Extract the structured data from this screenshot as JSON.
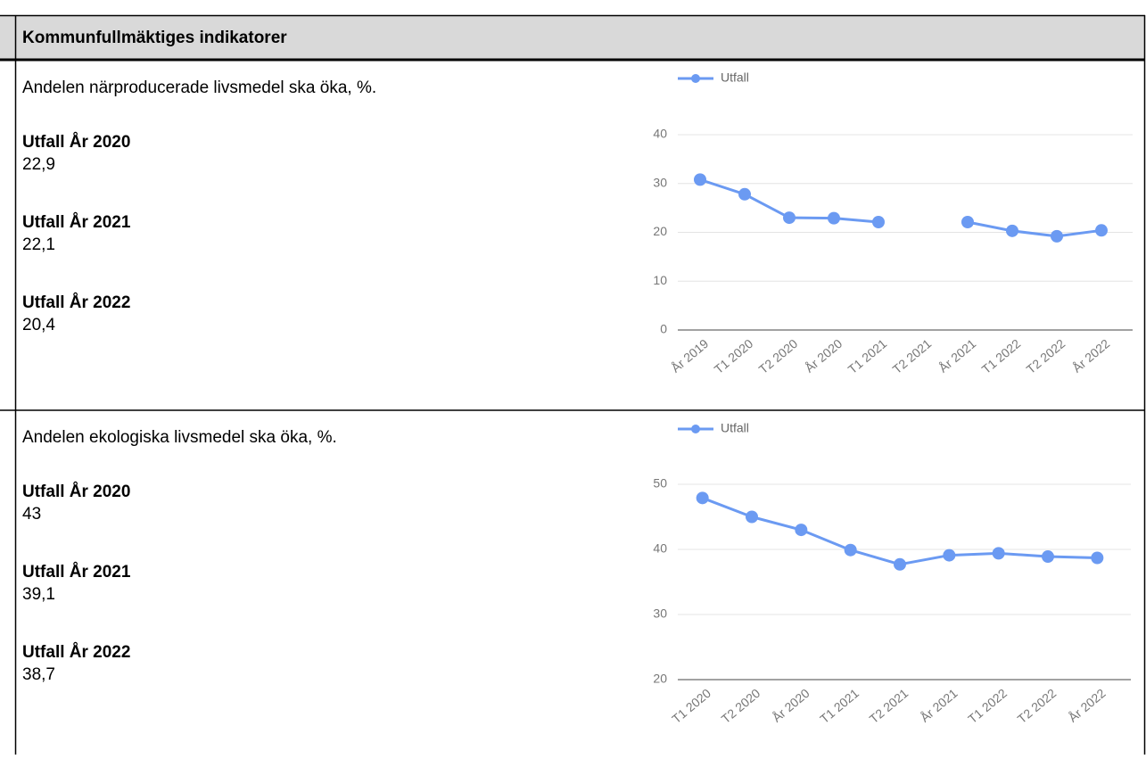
{
  "title": "Kommunfullmäktiges indikatorer",
  "indicators": [
    {
      "description": "Andelen närproducerade livsmedel ska öka, %.",
      "results": [
        {
          "label": "Utfall År 2020",
          "value": "22,9"
        },
        {
          "label": "Utfall År 2021",
          "value": "22,1"
        },
        {
          "label": "Utfall År 2022",
          "value": "20,4"
        }
      ]
    },
    {
      "description": "Andelen ekologiska livsmedel ska öka, %.",
      "results": [
        {
          "label": "Utfall År 2020",
          "value": "43"
        },
        {
          "label": "Utfall År 2021",
          "value": "39,1"
        },
        {
          "label": "Utfall År 2022",
          "value": "38,7"
        }
      ]
    }
  ],
  "chart_data": [
    {
      "type": "line",
      "categories": [
        "År 2019",
        "T1 2020",
        "T2 2020",
        "År 2020",
        "T1 2021",
        "T2 2021",
        "År 2021",
        "T1 2022",
        "T2 2022",
        "År 2022"
      ],
      "series": [
        {
          "name": "Utfall",
          "color": "#6b9af2",
          "values": [
            30.8,
            27.8,
            23.0,
            22.9,
            22.1,
            null,
            22.1,
            20.3,
            19.2,
            20.4
          ]
        }
      ],
      "ylim": [
        0,
        40
      ],
      "yticks": [
        0,
        10,
        20,
        30,
        40
      ],
      "grid": true,
      "legend": "top"
    },
    {
      "type": "line",
      "categories": [
        "T1 2020",
        "T2 2020",
        "År 2020",
        "T1 2021",
        "T2 2021",
        "År 2021",
        "T1 2022",
        "T2 2022",
        "År 2022"
      ],
      "series": [
        {
          "name": "Utfall",
          "color": "#6b9af2",
          "values": [
            47.9,
            45.0,
            43.0,
            39.9,
            37.7,
            39.1,
            39.4,
            38.9,
            38.7
          ]
        }
      ],
      "ylim": [
        20,
        50
      ],
      "yticks": [
        20,
        30,
        40,
        50
      ],
      "grid": true,
      "legend": "top"
    }
  ]
}
